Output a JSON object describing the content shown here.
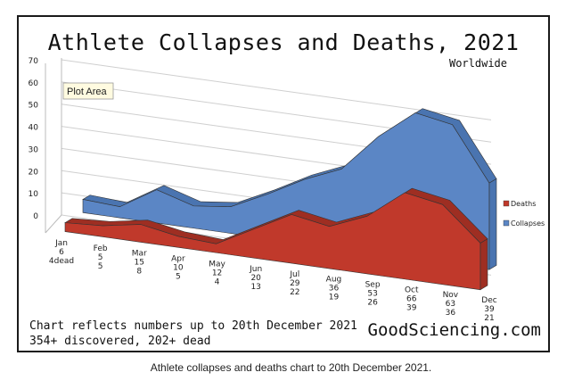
{
  "chart_data": {
    "type": "area",
    "title": "Athlete Collapses and Deaths, 2021",
    "subtitle": "Worldwide",
    "categories": [
      "Jan",
      "Feb",
      "Mar",
      "Apr",
      "May",
      "Jun",
      "Jul",
      "Aug",
      "Sep",
      "Oct",
      "Nov",
      "Dec"
    ],
    "x_labels": [
      [
        "Jan",
        "6",
        "4dead"
      ],
      [
        "Feb",
        "5",
        "5"
      ],
      [
        "Mar",
        "15",
        "8"
      ],
      [
        "Apr",
        "10",
        "5"
      ],
      [
        "May",
        "12",
        "4"
      ],
      [
        "Jun",
        "20",
        "13"
      ],
      [
        "Jul",
        "29",
        "22"
      ],
      [
        "Aug",
        "36",
        "19"
      ],
      [
        "Sep",
        "53",
        "26"
      ],
      [
        "Oct",
        "66",
        "39"
      ],
      [
        "Nov",
        "63",
        "36"
      ],
      [
        "Dec",
        "39",
        "21"
      ]
    ],
    "series": [
      {
        "name": "Deaths",
        "values": [
          4,
          5,
          8,
          5,
          4,
          13,
          22,
          19,
          26,
          39,
          36,
          21
        ],
        "color": "#c0392b"
      },
      {
        "name": "Collapses",
        "values": [
          6,
          5,
          15,
          10,
          12,
          20,
          29,
          36,
          53,
          66,
          63,
          39
        ],
        "color": "#5b86c5"
      }
    ],
    "ylim": [
      0,
      70
    ],
    "yticks": [
      "0",
      "10",
      "20",
      "30",
      "40",
      "50",
      "60",
      "70"
    ],
    "grid": true,
    "legend": "right",
    "plot_area_label": "Plot Area"
  },
  "notes": {
    "line1": "Chart reflects numbers up to 20th December 2021",
    "line2": "354+ discovered, 202+ dead"
  },
  "brand": "GoodSciencing.com",
  "caption": "Athlete collapses and deaths chart to 20th December 2021."
}
